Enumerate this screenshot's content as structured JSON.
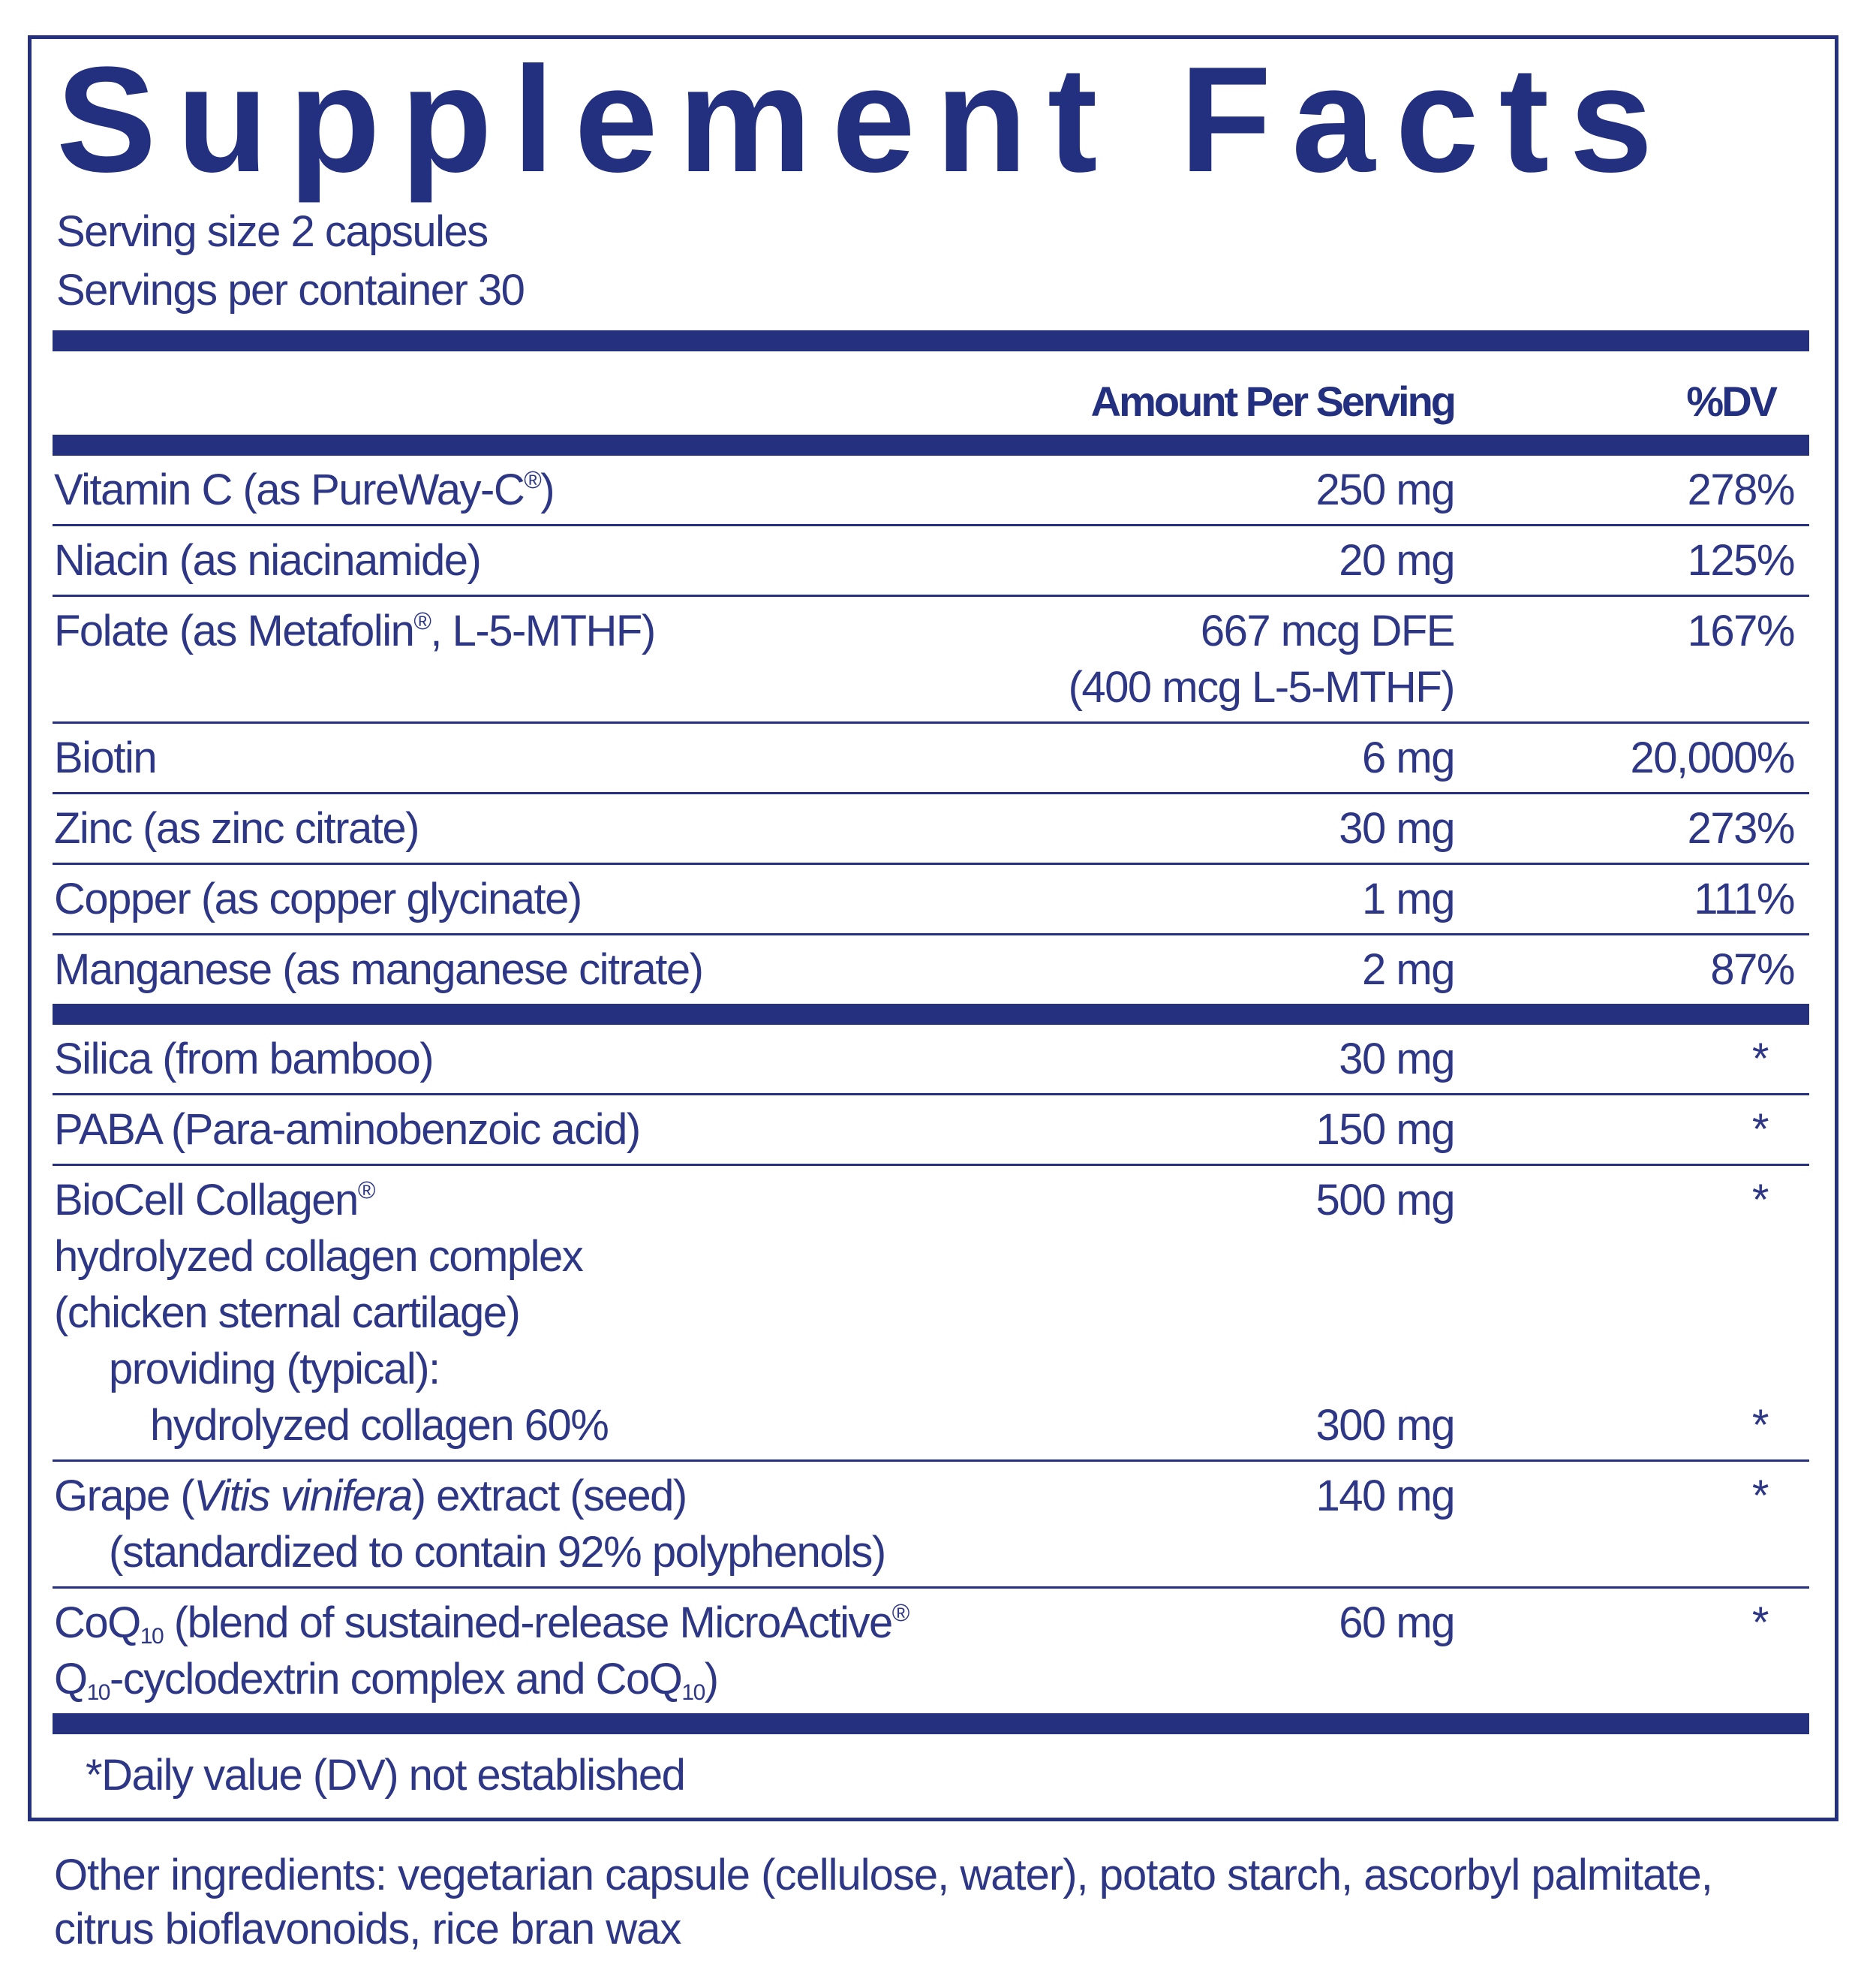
{
  "title": "Supplement Facts",
  "serving_size": "Serving size  2 capsules",
  "servings_per_container": "Servings per container  30",
  "header": {
    "amount": "Amount Per Serving",
    "dv": "%DV"
  },
  "colors": {
    "text": "#2d3786",
    "rule": "#25307f"
  },
  "group1": [
    {
      "lines": [
        {
          "name": [
            {
              "t": "Vitamin C (as PureWay-C"
            },
            {
              "t": "®",
              "s": "sup"
            },
            {
              "t": ")"
            }
          ],
          "amount": "250 mg",
          "dv": "278%"
        }
      ]
    },
    {
      "lines": [
        {
          "name": [
            {
              "t": "Niacin (as niacinamide)"
            }
          ],
          "amount": "20 mg",
          "dv": "125%"
        }
      ]
    },
    {
      "lines": [
        {
          "name": [
            {
              "t": "Folate (as Metafolin"
            },
            {
              "t": "®",
              "s": "sup"
            },
            {
              "t": ", L-5-MTHF)"
            }
          ],
          "amount": "667 mcg DFE",
          "dv": "167%"
        },
        {
          "name": [],
          "amount": "(400 mcg L-5-MTHF)",
          "dv": ""
        }
      ]
    },
    {
      "lines": [
        {
          "name": [
            {
              "t": "Biotin"
            }
          ],
          "amount": "6 mg",
          "dv": "20,000%"
        }
      ]
    },
    {
      "lines": [
        {
          "name": [
            {
              "t": "Zinc (as zinc citrate)"
            }
          ],
          "amount": "30 mg",
          "dv": "273%"
        }
      ]
    },
    {
      "lines": [
        {
          "name": [
            {
              "t": "Copper (as copper glycinate)"
            }
          ],
          "amount": "1 mg",
          "dv": "111%"
        }
      ]
    },
    {
      "lines": [
        {
          "name": [
            {
              "t": "Manganese (as manganese citrate)"
            }
          ],
          "amount": "2 mg",
          "dv": "87%"
        }
      ]
    }
  ],
  "group2": [
    {
      "lines": [
        {
          "name": [
            {
              "t": "Silica (from bamboo)"
            }
          ],
          "amount": "30 mg",
          "dv": "*"
        }
      ]
    },
    {
      "lines": [
        {
          "name": [
            {
              "t": "PABA (Para-aminobenzoic acid)"
            }
          ],
          "amount": "150 mg",
          "dv": "*"
        }
      ]
    },
    {
      "lines": [
        {
          "name": [
            {
              "t": "BioCell Collagen"
            },
            {
              "t": "®",
              "s": "sup"
            }
          ],
          "amount": "500 mg",
          "dv": "*"
        },
        {
          "name": [
            {
              "t": "hydrolyzed collagen complex"
            }
          ],
          "amount": "",
          "dv": ""
        },
        {
          "name": [
            {
              "t": "(chicken sternal cartilage)"
            }
          ],
          "amount": "",
          "dv": ""
        },
        {
          "name": [
            {
              "t": "providing (typical):"
            }
          ],
          "indent": 1,
          "amount": "",
          "dv": ""
        },
        {
          "name": [
            {
              "t": "hydrolyzed collagen 60%"
            }
          ],
          "indent": 2,
          "amount": "300 mg",
          "dv": "*"
        }
      ]
    },
    {
      "lines": [
        {
          "name": [
            {
              "t": "Grape ("
            },
            {
              "t": "Vitis vinifera",
              "s": "i"
            },
            {
              "t": ") extract (seed)"
            }
          ],
          "amount": "140 mg",
          "dv": "*"
        },
        {
          "name": [
            {
              "t": "(standardized to contain 92% polyphenols)"
            }
          ],
          "indent": 1,
          "amount": "",
          "dv": ""
        }
      ]
    },
    {
      "lines": [
        {
          "name": [
            {
              "t": "CoQ"
            },
            {
              "t": "10",
              "s": "sub"
            },
            {
              "t": " (blend of sustained-release MicroActive"
            },
            {
              "t": "®",
              "s": "sup"
            }
          ],
          "amount": "60 mg",
          "dv": "*"
        },
        {
          "name": [
            {
              "t": "Q"
            },
            {
              "t": "10",
              "s": "sub"
            },
            {
              "t": "-cyclodextrin complex and CoQ"
            },
            {
              "t": "10",
              "s": "sub"
            },
            {
              "t": ")"
            }
          ],
          "amount": "",
          "dv": ""
        }
      ]
    }
  ],
  "footnote": "*Daily value (DV) not established",
  "other_ingredients": "Other ingredients: vegetarian capsule (cellulose, water), potato starch, ascorbyl palmitate, citrus bioflavonoids, rice bran wax"
}
